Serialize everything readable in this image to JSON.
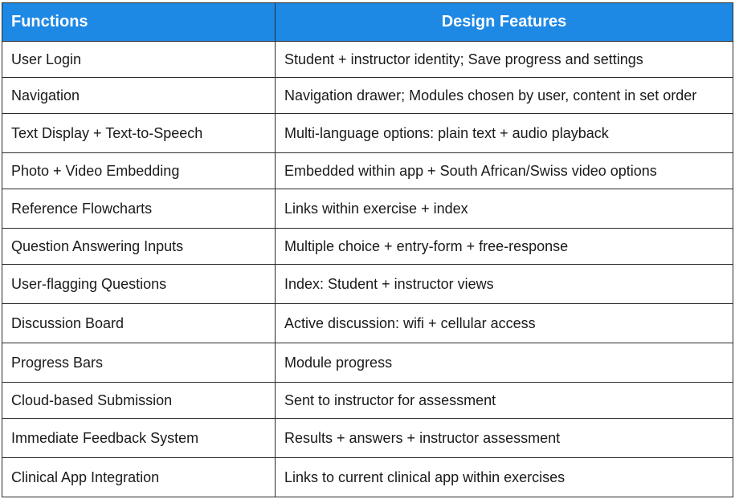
{
  "table": {
    "headers": [
      "Functions",
      "Design Features"
    ],
    "rows": [
      [
        "User Login",
        "Student + instructor identity; Save progress and settings"
      ],
      [
        "Navigation",
        "Navigation drawer; Modules chosen by user, content in set order"
      ],
      [
        "Text Display + Text-to-Speech",
        "Multi-language options: plain text + audio playback"
      ],
      [
        "Photo + Video Embedding",
        "Embedded within app + South African/Swiss video options"
      ],
      [
        "Reference Flowcharts",
        "Links within exercise + index"
      ],
      [
        "Question Answering Inputs",
        "Multiple choice + entry-form + free-response"
      ],
      [
        "User-flagging Questions",
        "Index: Student + instructor views"
      ],
      [
        "Discussion Board",
        "Active discussion: wifi + cellular access"
      ],
      [
        "Progress Bars",
        "Module progress"
      ],
      [
        "Cloud-based Submission",
        "Sent to instructor for assessment"
      ],
      [
        "Immediate Feedback System",
        "Results + answers + instructor assessment"
      ],
      [
        "Clinical App Integration",
        "Links to current clinical app within exercises"
      ]
    ]
  },
  "colors": {
    "header_bg": "#1e88e5",
    "header_text": "#ffffff",
    "border": "#2b2b2b"
  }
}
